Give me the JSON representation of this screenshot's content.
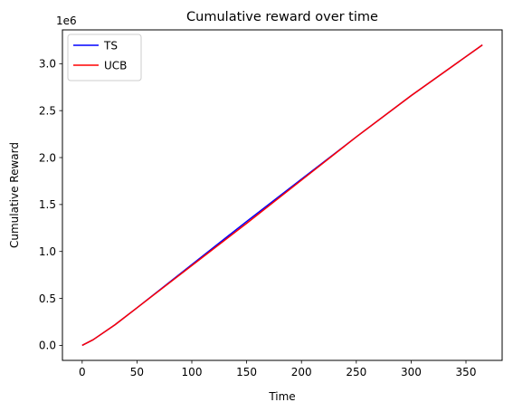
{
  "chart_data": {
    "type": "line",
    "title": "Cumulative reward over time",
    "xlabel": "Time",
    "ylabel": "Cumulative Reward",
    "y_offset_text": "1e6",
    "xlim": [
      -18,
      383
    ],
    "ylim": [
      -0.16,
      3.36
    ],
    "y_unit_multiplier": 1000000,
    "x_ticks": [
      0,
      50,
      100,
      150,
      200,
      250,
      300,
      350
    ],
    "x_tick_labels": [
      "0",
      "50",
      "100",
      "150",
      "200",
      "250",
      "300",
      "350"
    ],
    "y_ticks": [
      0.0,
      0.5,
      1.0,
      1.5,
      2.0,
      2.5,
      3.0
    ],
    "y_tick_labels": [
      "0.0",
      "0.5",
      "1.0",
      "1.5",
      "2.0",
      "2.5",
      "3.0"
    ],
    "grid": false,
    "legend_position": "upper-left",
    "series": [
      {
        "name": "TS",
        "color": "#0000ff",
        "x": [
          0,
          10,
          30,
          50,
          100,
          150,
          200,
          250,
          300,
          365
        ],
        "y": [
          0.0,
          0.06,
          0.22,
          0.4,
          0.86,
          1.32,
          1.77,
          2.22,
          2.66,
          3.2
        ]
      },
      {
        "name": "UCB",
        "color": "#ff0000",
        "x": [
          0,
          10,
          30,
          50,
          100,
          150,
          200,
          250,
          300,
          365
        ],
        "y": [
          0.0,
          0.06,
          0.22,
          0.4,
          0.85,
          1.3,
          1.76,
          2.22,
          2.66,
          3.2
        ]
      }
    ]
  }
}
